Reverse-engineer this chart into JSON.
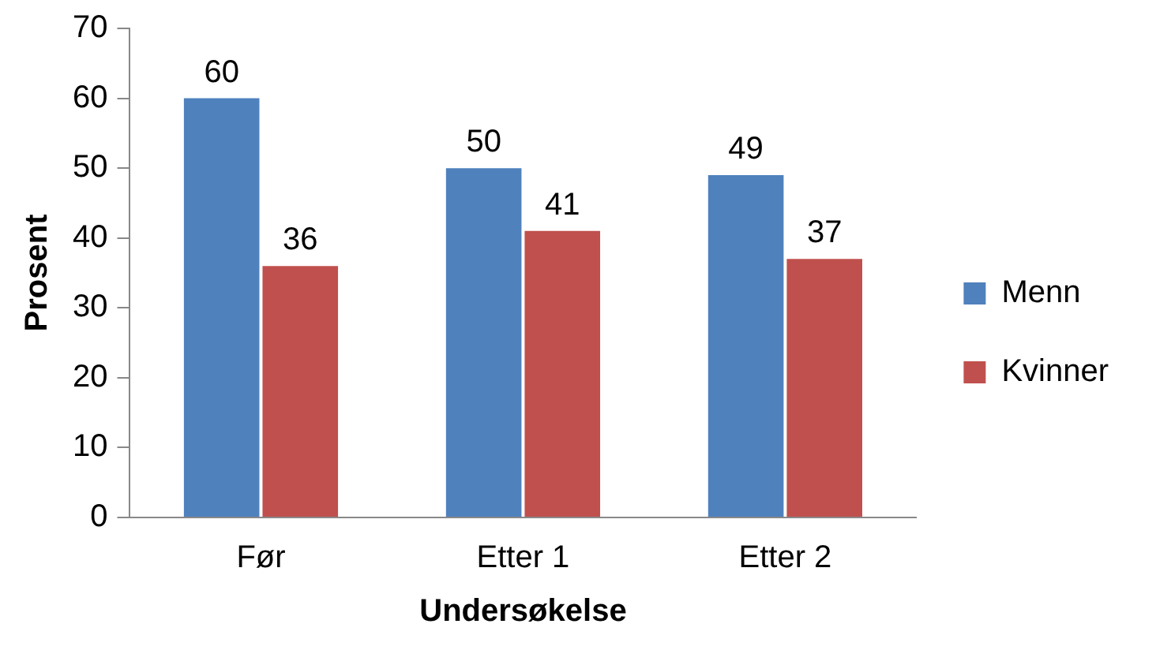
{
  "chart_data": {
    "type": "bar",
    "xlabel": "Undersøkelse",
    "ylabel": "Prosent",
    "categories": [
      "Før",
      "Etter 1",
      "Etter 2"
    ],
    "series": [
      {
        "name": "Menn",
        "color": "#4f81bd",
        "values": [
          60,
          50,
          49
        ]
      },
      {
        "name": "Kvinner",
        "color": "#c0504d",
        "values": [
          36,
          41,
          37
        ]
      }
    ],
    "ylim": [
      0,
      70
    ],
    "yticks": [
      0,
      10,
      20,
      30,
      40,
      50,
      60,
      70
    ],
    "grid": false,
    "legend": "right",
    "data_labels": true
  }
}
